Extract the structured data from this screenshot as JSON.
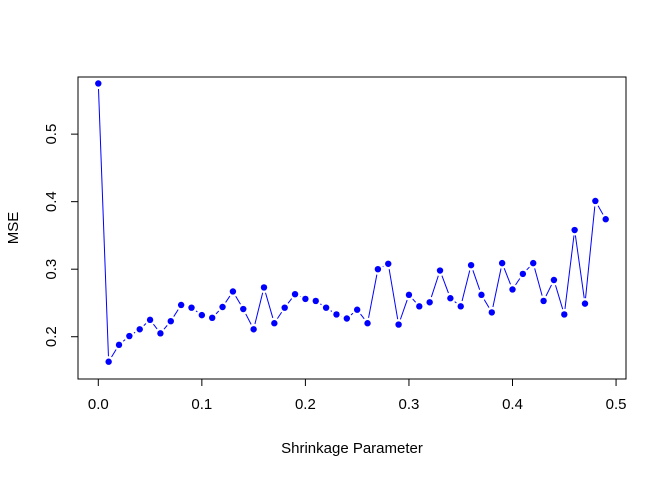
{
  "chart_data": {
    "type": "line",
    "title": "",
    "xlabel": "Shrinkage Parameter",
    "ylabel": "MSE",
    "xlim": [
      -0.0196,
      0.5096
    ],
    "ylim": [
      0.1374,
      0.5846
    ],
    "x_ticks": [
      "0.0",
      "0.1",
      "0.2",
      "0.3",
      "0.4",
      "0.5"
    ],
    "y_ticks": [
      "0.2",
      "0.3",
      "0.4",
      "0.5"
    ],
    "x_tick_values": [
      0.0,
      0.1,
      0.2,
      0.3,
      0.4,
      0.5
    ],
    "y_tick_values": [
      0.2,
      0.3,
      0.4,
      0.5
    ],
    "grid": false,
    "line_style": "both (points connected by line segments with gaps)",
    "color": "#0000ff",
    "series": [
      {
        "x": [
          0.0,
          0.01,
          0.02,
          0.03,
          0.04,
          0.05,
          0.06,
          0.07,
          0.08,
          0.09,
          0.1,
          0.11,
          0.12,
          0.13,
          0.14,
          0.15,
          0.16,
          0.17,
          0.18,
          0.19,
          0.2,
          0.21,
          0.22,
          0.23,
          0.24,
          0.25,
          0.26,
          0.27,
          0.28,
          0.29,
          0.3,
          0.31,
          0.32,
          0.33,
          0.34,
          0.35,
          0.36,
          0.37,
          0.38,
          0.39,
          0.4,
          0.41,
          0.42,
          0.43,
          0.44,
          0.45,
          0.46,
          0.47,
          0.48,
          0.49
        ],
        "y": [
          0.575,
          0.163,
          0.188,
          0.201,
          0.211,
          0.225,
          0.205,
          0.223,
          0.247,
          0.243,
          0.232,
          0.228,
          0.244,
          0.267,
          0.241,
          0.211,
          0.273,
          0.22,
          0.243,
          0.263,
          0.256,
          0.253,
          0.243,
          0.233,
          0.227,
          0.24,
          0.22,
          0.3,
          0.308,
          0.218,
          0.262,
          0.245,
          0.251,
          0.298,
          0.257,
          0.245,
          0.306,
          0.262,
          0.236,
          0.309,
          0.27,
          0.293,
          0.309,
          0.253,
          0.284,
          0.233,
          0.358,
          0.249,
          0.401,
          0.374
        ]
      }
    ]
  }
}
